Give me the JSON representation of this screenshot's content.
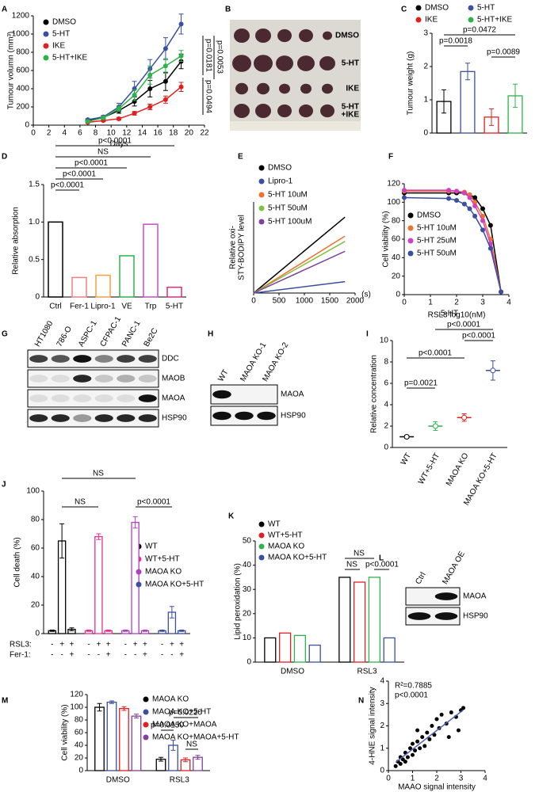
{
  "chart_data": [
    {
      "type": "line",
      "panel": "A",
      "xlabel": "Days",
      "ylabel": "Tumour volumn (mm³)",
      "x": [
        7,
        9,
        11,
        13,
        15,
        17,
        19
      ],
      "xlim": [
        0,
        22
      ],
      "xticks": [
        0,
        2,
        4,
        6,
        8,
        10,
        12,
        14,
        16,
        18,
        20,
        22
      ],
      "ylim": [
        0,
        1200
      ],
      "yticks": [
        0,
        200,
        400,
        600,
        800,
        1000,
        1200
      ],
      "series": [
        {
          "name": "DMSO",
          "color": "#000000",
          "values": [
            50,
            85,
            160,
            260,
            400,
            480,
            700
          ],
          "errors": [
            10,
            15,
            30,
            50,
            90,
            100,
            80
          ]
        },
        {
          "name": "5-HT",
          "color": "#3a4fa0",
          "values": [
            60,
            90,
            200,
            400,
            620,
            840,
            1110
          ],
          "errors": [
            10,
            15,
            40,
            80,
            100,
            120,
            110
          ]
        },
        {
          "name": "IKE",
          "color": "#e02020",
          "values": [
            30,
            50,
            70,
            130,
            200,
            280,
            420
          ],
          "errors": [
            5,
            10,
            15,
            20,
            30,
            40,
            50
          ]
        },
        {
          "name": "5-HT+IKE",
          "color": "#2db34a",
          "values": [
            40,
            80,
            180,
            330,
            550,
            650,
            760
          ],
          "errors": [
            10,
            15,
            30,
            60,
            100,
            80,
            60
          ]
        }
      ],
      "annotations": [
        "p=0.0181",
        "p=0.0494",
        "p=0.0053"
      ]
    },
    {
      "type": "bar",
      "panel": "C",
      "ylabel": "Tumour weight (g)",
      "ylim": [
        0,
        3
      ],
      "yticks": [
        0,
        1,
        2,
        3
      ],
      "series": [
        {
          "name": "DMSO",
          "color": "#000000",
          "values": [
            0.95
          ],
          "errors": [
            0.35
          ]
        },
        {
          "name": "5-HT",
          "color": "#3a4fa0",
          "values": [
            1.85
          ],
          "errors": [
            0.25
          ]
        },
        {
          "name": "IKE",
          "color": "#e02020",
          "values": [
            0.48
          ],
          "errors": [
            0.25
          ]
        },
        {
          "name": "5-HT+IKE",
          "color": "#2db34a",
          "values": [
            1.12
          ],
          "errors": [
            0.35
          ]
        }
      ],
      "annotations": [
        "p=0.0472",
        "p=0.0018",
        "p=0.0089"
      ]
    },
    {
      "type": "bar",
      "panel": "D",
      "ylabel": "Relative absorption",
      "categories": [
        "Ctrl",
        "Fer-1",
        "Lipro-1",
        "VE",
        "Trp",
        "5-HT"
      ],
      "values": [
        1.0,
        0.26,
        0.29,
        0.55,
        0.97,
        0.13
      ],
      "colors": [
        "#000000",
        "#f08080",
        "#f0a040",
        "#2db34a",
        "#c050c0",
        "#d03080"
      ],
      "ylim": [
        0,
        1.5
      ],
      "yticks": [
        0,
        0.5,
        {
          "value": 1.0,
          "label": "1.0"
        },
        1.5
      ],
      "annotations": [
        "p<0.0001",
        "NS",
        "p<0.0001",
        "p<0.0001",
        "p<0.0001"
      ]
    },
    {
      "type": "line",
      "panel": "E",
      "ylabel": [
        "Relative oxi-",
        "STY-BODIPY level"
      ],
      "xlabel": "(s)",
      "markers": false,
      "x": [
        0,
        1800
      ],
      "xlim": [
        0,
        2000
      ],
      "xticks": [
        0,
        500,
        1000,
        1500,
        2000
      ],
      "ylim": [
        0,
        1.2
      ],
      "series": [
        {
          "name": "DMSO",
          "color": "#000000",
          "values": [
            0,
            1.0
          ]
        },
        {
          "name": "Lipro-1",
          "color": "#3a4fa0",
          "values": [
            0,
            0.15
          ]
        },
        {
          "name": "5-HT 10uM",
          "color": "#f07030",
          "values": [
            0,
            0.75
          ]
        },
        {
          "name": "5-HT 50uM",
          "color": "#80c040",
          "values": [
            0,
            0.68
          ]
        },
        {
          "name": "5-HT 100uM",
          "color": "#8040a0",
          "values": [
            0,
            0.55
          ]
        }
      ]
    },
    {
      "type": "line",
      "panel": "F",
      "ylabel": "Cell viability (%)",
      "xlabel": "RSL3 log10(nM)",
      "x": [
        0,
        1.7,
        2,
        2.3,
        2.5,
        2.7,
        3,
        3.3,
        3.7
      ],
      "xlim": [
        0,
        4
      ],
      "xticks": [
        0,
        1,
        2,
        3,
        4
      ],
      "ylim": [
        0,
        120
      ],
      "yticks": [
        0,
        20,
        40,
        60,
        80,
        100,
        120
      ],
      "series": [
        {
          "name": "DMSO",
          "color": "#000000",
          "values": [
            110,
            110,
            110,
            110,
            108,
            105,
            93,
            75,
            3
          ]
        },
        {
          "name": "5-HT 10uM",
          "color": "#f07030",
          "values": [
            112,
            112,
            112,
            111,
            108,
            100,
            85,
            60,
            3
          ]
        },
        {
          "name": "5-HT 25uM",
          "color": "#d040c0",
          "values": [
            113,
            113,
            112,
            110,
            105,
            96,
            80,
            55,
            3
          ]
        },
        {
          "name": "5-HT 50uM",
          "color": "#3a4fa0",
          "values": [
            105,
            104,
            102,
            98,
            93,
            85,
            70,
            50,
            3
          ]
        }
      ]
    },
    {
      "type": "dot",
      "panel": "I",
      "title": "5-HT",
      "ylabel": "Relative concentration",
      "categories": [
        "WT",
        "WT+5-HT",
        "MAOA KO",
        "MAOA KO+5-HT"
      ],
      "values": [
        1.0,
        2.0,
        2.8,
        7.2
      ],
      "errors": [
        0.15,
        0.4,
        0.35,
        0.9
      ],
      "colors": [
        "#000000",
        "#2db34a",
        "#e02020",
        "#3a4fa0"
      ],
      "ylim": [
        0,
        10
      ],
      "yticks": [
        0,
        2,
        4,
        6,
        8,
        10
      ],
      "annotations": [
        "p<0.0001",
        "p<0.0001",
        "p<0.0001",
        "p=0.0021"
      ]
    },
    {
      "type": "bar",
      "panel": "J",
      "ylabel": "Cell death (%)",
      "ylim": [
        0,
        100
      ],
      "yticks": [
        0,
        20,
        40,
        60,
        80,
        100
      ],
      "series": [
        {
          "name": "WT",
          "color": "#000000",
          "values": [
            2,
            65,
            3
          ],
          "errors": [
            0.5,
            12,
            1
          ]
        },
        {
          "name": "WT+5-HT",
          "color": "#e83090",
          "values": [
            2,
            68,
            2
          ],
          "errors": [
            0.5,
            2,
            0.5
          ]
        },
        {
          "name": "MAOA KO",
          "color": "#b040c0",
          "values": [
            2,
            78,
            2
          ],
          "errors": [
            0.5,
            4,
            0.5
          ]
        },
        {
          "name": "MAOA KO+5-HT",
          "color": "#3a4fa0",
          "values": [
            2,
            15,
            2
          ],
          "errors": [
            0.5,
            4,
            0.5
          ]
        }
      ],
      "row_labels": [
        "RSL3:",
        "Fer-1:"
      ],
      "conditions": [
        [
          "-",
          "+",
          "+"
        ],
        [
          "-",
          "-",
          "+"
        ]
      ],
      "annotations": [
        "NS",
        "NS",
        "p<0.0001"
      ]
    },
    {
      "type": "bar",
      "panel": "K",
      "ylabel": "Lipid peroxidation (%)",
      "categories": [
        "DMSO",
        "RSL3"
      ],
      "ylim": [
        0,
        50
      ],
      "yticks": [
        0,
        10,
        20,
        30,
        40,
        50
      ],
      "series": [
        {
          "name": "WT",
          "color": "#000000",
          "values": [
            10,
            35
          ]
        },
        {
          "name": "WT+5-HT",
          "color": "#e02020",
          "values": [
            12,
            33
          ]
        },
        {
          "name": "MAOA KO",
          "color": "#2db34a",
          "values": [
            11,
            35
          ]
        },
        {
          "name": "MAOA KO+5-HT",
          "color": "#3a4fa0",
          "values": [
            7,
            10
          ]
        }
      ],
      "annotations": [
        "NS",
        "NS",
        "p<0.0001"
      ]
    },
    {
      "type": "bar",
      "panel": "M",
      "ylabel": "Cell viability (%)",
      "categories": [
        "DMSO",
        "RSL3"
      ],
      "ylim": [
        0,
        120
      ],
      "yticks": [
        0,
        20,
        40,
        60,
        80,
        100,
        120
      ],
      "series": [
        {
          "name": "MAOA KO",
          "color": "#000000",
          "values": [
            100,
            18
          ],
          "errors": [
            6,
            3
          ]
        },
        {
          "name": "MAOA KO+5-HT",
          "color": "#3a4fa0",
          "values": [
            108,
            40
          ],
          "errors": [
            2,
            8
          ]
        },
        {
          "name": "MAOA KO+MAOA",
          "color": "#e02020",
          "values": [
            98,
            17
          ],
          "errors": [
            3,
            3
          ]
        },
        {
          "name": "MAOA KO+MAOA+5-HT",
          "color": "#8040a0",
          "values": [
            86,
            21
          ],
          "errors": [
            3,
            3
          ]
        }
      ],
      "annotations": [
        "p=0.0150",
        "p=0.0220",
        "NS"
      ]
    },
    {
      "type": "scatter",
      "panel": "N",
      "xlabel": "MAAO signal intensity",
      "ylabel": "4-HNE signal intensity",
      "xlim": [
        0,
        4
      ],
      "ylim": [
        0,
        4
      ],
      "xticks": [
        0,
        1,
        2,
        3,
        4
      ],
      "yticks": [
        0,
        1,
        2,
        3,
        4
      ],
      "x": [
        0.3,
        0.4,
        0.5,
        0.5,
        0.6,
        0.7,
        0.7,
        0.8,
        0.9,
        1.0,
        1.0,
        1.1,
        1.2,
        1.2,
        1.3,
        1.4,
        1.5,
        1.6,
        1.7,
        1.8,
        1.9,
        2.0,
        2.1,
        2.2,
        2.4,
        2.5,
        2.6,
        2.8,
        2.9,
        3.0,
        3.1
      ],
      "values": [
        0.2,
        0.4,
        0.3,
        0.6,
        0.5,
        0.8,
        0.4,
        0.6,
        1.0,
        0.7,
        1.2,
        0.9,
        1.3,
        1.8,
        1.0,
        1.5,
        1.1,
        1.7,
        1.4,
        2.0,
        1.6,
        2.3,
        1.9,
        2.5,
        2.1,
        1.5,
        2.6,
        2.4,
        1.8,
        2.7,
        2.8
      ],
      "annotations": [
        "R²=0.7885",
        "p<0.0001"
      ]
    }
  ],
  "photo": {
    "panel": "B",
    "rows": [
      [
        "DMSO"
      ],
      [
        "5-HT"
      ],
      [
        "IKE"
      ],
      [
        "5-HT",
        "+IKE"
      ]
    ]
  },
  "blots": [
    {
      "panel": "G",
      "lanes": [
        "HT1080",
        "786-O",
        "ASPC-1",
        "CFPAC-1",
        "PANC-1",
        "Be2C"
      ],
      "rows": [
        "DDC",
        "MAOB",
        "MAOA",
        "HSP90"
      ]
    },
    {
      "panel": "H",
      "lanes": [
        "WT",
        "MAOA KO-1",
        "MAOA KO-2"
      ],
      "rows": [
        "MAOA",
        "HSP90"
      ]
    },
    {
      "panel": "L",
      "lanes": [
        "Ctrl",
        "MAOA OE"
      ],
      "rows": [
        "MAOA",
        "HSP90"
      ]
    }
  ]
}
